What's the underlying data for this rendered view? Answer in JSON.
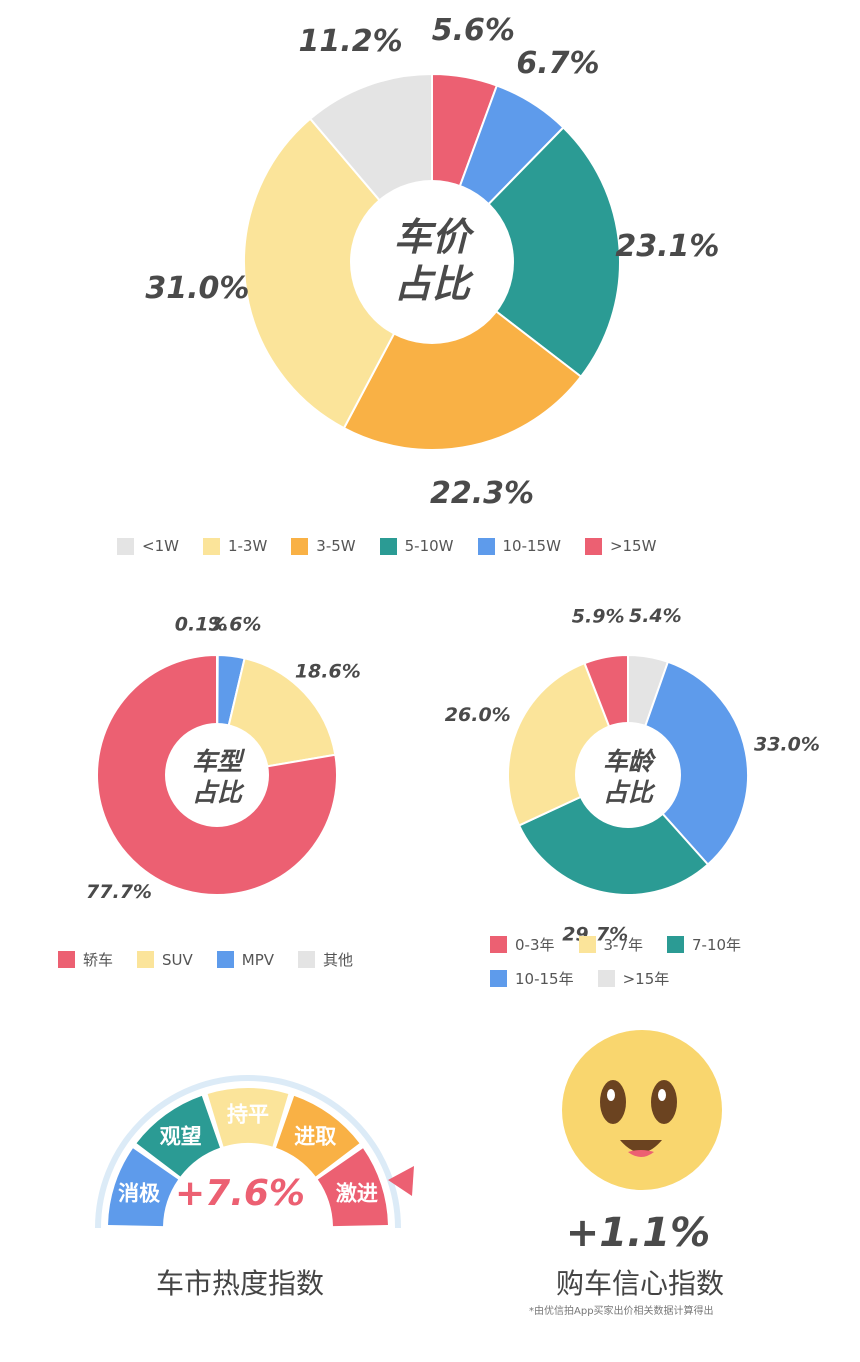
{
  "charts": {
    "price": {
      "type": "pie",
      "title": "车价占比",
      "center_line1": "车价",
      "center_line2": "占比",
      "slices": [
        {
          "label": ">15W",
          "value": 5.6,
          "display": "5.6%",
          "color": "#EC6072"
        },
        {
          "label": "10-15W",
          "value": 6.7,
          "display": "6.7%",
          "color": "#5E9BEB"
        },
        {
          "label": "5-10W",
          "value": 23.1,
          "display": "23.1%",
          "color": "#2B9B94"
        },
        {
          "label": "3-5W",
          "value": 22.3,
          "display": "22.3%",
          "color": "#F9B145"
        },
        {
          "label": "1-3W",
          "value": 31.0,
          "display": "31.0%",
          "color": "#FBE49A"
        },
        {
          "label": "<1W",
          "value": 11.2,
          "display": "11.2%",
          "color": "#E4E4E4"
        }
      ],
      "legend": [
        {
          "label": "<1W",
          "color": "#E4E4E4"
        },
        {
          "label": "1-3W",
          "color": "#FBE49A"
        },
        {
          "label": "3-5W",
          "color": "#F9B145"
        },
        {
          "label": "5-10W",
          "color": "#2B9B94"
        },
        {
          "label": "10-15W",
          "color": "#5E9BEB"
        },
        {
          "label": ">15W",
          "color": "#EC6072"
        }
      ]
    },
    "type": {
      "type": "pie",
      "title": "车型占比",
      "center_line1": "车型",
      "center_line2": "占比",
      "slices": [
        {
          "label": "其他",
          "value": 0.1,
          "display": "0.1%",
          "color": "#E4E4E4"
        },
        {
          "label": "MPV",
          "value": 3.6,
          "display": "3.6%",
          "color": "#5E9BEB"
        },
        {
          "label": "SUV",
          "value": 18.6,
          "display": "18.6%",
          "color": "#FBE49A"
        },
        {
          "label": "轿车",
          "value": 77.7,
          "display": "77.7%",
          "color": "#EC6072"
        }
      ],
      "legend": [
        {
          "label": "轿车",
          "color": "#EC6072"
        },
        {
          "label": "SUV",
          "color": "#FBE49A"
        },
        {
          "label": "MPV",
          "color": "#5E9BEB"
        },
        {
          "label": "其他",
          "color": "#E4E4E4"
        }
      ]
    },
    "age": {
      "type": "pie",
      "title": "车龄占比",
      "center_line1": "车龄",
      "center_line2": "占比",
      "slices": [
        {
          "label": ">15年",
          "value": 5.4,
          "display": "5.4%",
          "color": "#E4E4E4"
        },
        {
          "label": "10-15年",
          "value": 33.0,
          "display": "33.0%",
          "color": "#5E9BEB"
        },
        {
          "label": "7-10年",
          "value": 29.7,
          "display": "29.7%",
          "color": "#2B9B94"
        },
        {
          "label": "3-7年",
          "value": 26.0,
          "display": "26.0%",
          "color": "#FBE49A"
        },
        {
          "label": "0-3年",
          "value": 5.9,
          "display": "5.9%",
          "color": "#EC6072"
        }
      ],
      "legend": [
        {
          "label": "0-3年",
          "color": "#EC6072"
        },
        {
          "label": "3-7年",
          "color": "#FBE49A"
        },
        {
          "label": "7-10年",
          "color": "#2B9B94"
        },
        {
          "label": "10-15年",
          "color": "#5E9BEB"
        },
        {
          "label": ">15年",
          "color": "#E4E4E4"
        }
      ]
    }
  },
  "gauge": {
    "segments": [
      {
        "label": "消极",
        "color": "#5E9BEB"
      },
      {
        "label": "观望",
        "color": "#2B9B94"
      },
      {
        "label": "持平",
        "color": "#FBE49A"
      },
      {
        "label": "进取",
        "color": "#F9B145"
      },
      {
        "label": "激进",
        "color": "#EC6072"
      }
    ],
    "active_segment": "激进",
    "value": "+7.6%",
    "value_color": "#EC6072",
    "caption": "车市热度指数"
  },
  "confidence": {
    "value": "+1.1%",
    "caption": "购车信心指数",
    "footnote": "*由优信拍App买家出价相关数据计算得出",
    "face_color": "#F9D66E"
  }
}
